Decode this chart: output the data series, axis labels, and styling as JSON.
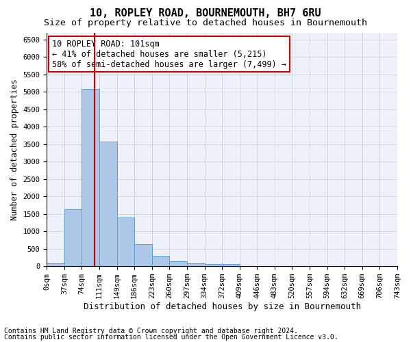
{
  "title": "10, ROPLEY ROAD, BOURNEMOUTH, BH7 6RU",
  "subtitle": "Size of property relative to detached houses in Bournemouth",
  "xlabel": "Distribution of detached houses by size in Bournemouth",
  "ylabel": "Number of detached properties",
  "footer_line1": "Contains HM Land Registry data © Crown copyright and database right 2024.",
  "footer_line2": "Contains public sector information licensed under the Open Government Licence v3.0.",
  "annotation_line1": "10 ROPLEY ROAD: 101sqm",
  "annotation_line2": "← 41% of detached houses are smaller (5,215)",
  "annotation_line3": "58% of semi-detached houses are larger (7,499) →",
  "bar_color": "#aec6e8",
  "bar_edge_color": "#5a9fd4",
  "grid_color": "#d0d8e8",
  "background_color": "#eef2f8",
  "vline_color": "#cc0000",
  "vline_x": 2.73,
  "bin_labels": [
    "0sqm",
    "37sqm",
    "74sqm",
    "111sqm",
    "149sqm",
    "186sqm",
    "223sqm",
    "260sqm",
    "297sqm",
    "334sqm",
    "372sqm",
    "409sqm",
    "446sqm",
    "483sqm",
    "520sqm",
    "557sqm",
    "594sqm",
    "632sqm",
    "669sqm",
    "706sqm",
    "743sqm"
  ],
  "bar_values": [
    75,
    1625,
    5075,
    3575,
    1400,
    625,
    300,
    140,
    90,
    60,
    55,
    0,
    0,
    0,
    0,
    0,
    0,
    0,
    0,
    0
  ],
  "ylim": [
    0,
    6700
  ],
  "yticks": [
    0,
    500,
    1000,
    1500,
    2000,
    2500,
    3000,
    3500,
    4000,
    4500,
    5000,
    5500,
    6000,
    6500
  ],
  "title_fontsize": 11,
  "subtitle_fontsize": 9.5,
  "xlabel_fontsize": 9,
  "ylabel_fontsize": 8.5,
  "tick_fontsize": 7.5,
  "annotation_fontsize": 8.5,
  "footer_fontsize": 7
}
